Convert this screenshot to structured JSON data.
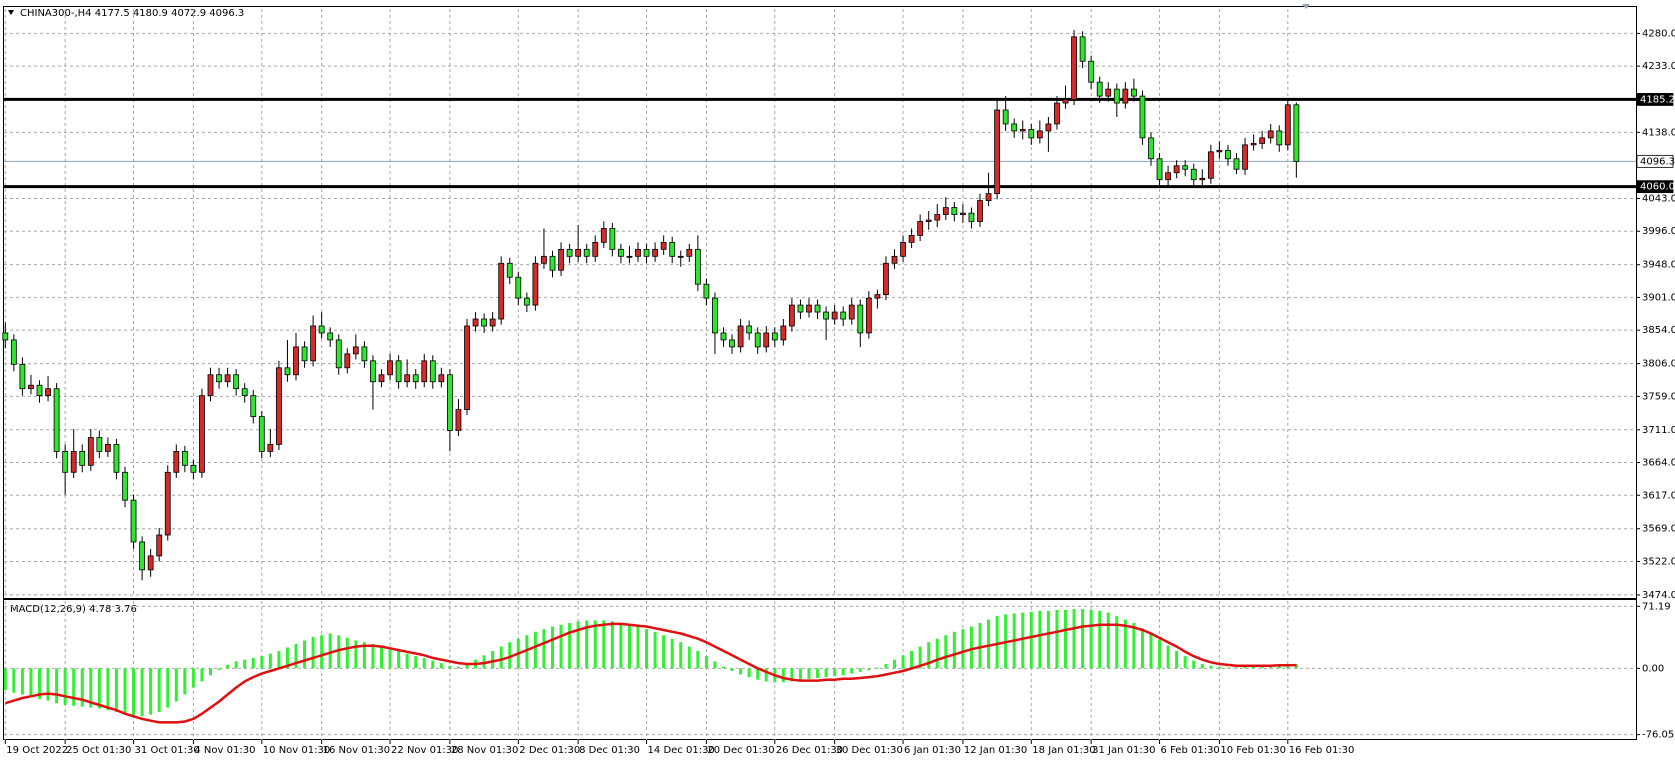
{
  "chart_data": {
    "type": "candlestick",
    "symbol": "CHINA300-,H4",
    "categories": [
      "19 Oct 2022",
      null,
      null,
      null,
      null,
      null,
      null,
      "25 Oct 01:30",
      null,
      null,
      null,
      null,
      null,
      null,
      null,
      "31 Oct 01:30",
      null,
      null,
      null,
      null,
      null,
      null,
      "4 Nov 01:30",
      null,
      null,
      null,
      null,
      null,
      null,
      null,
      "10 Nov 01:30",
      null,
      null,
      null,
      null,
      null,
      null,
      "16 Nov 01:30",
      null,
      null,
      null,
      null,
      null,
      null,
      null,
      "22 Nov 01:30",
      null,
      null,
      null,
      null,
      null,
      null,
      "28 Nov 01:30",
      null,
      null,
      null,
      null,
      null,
      null,
      null,
      "2 Dec 01:30",
      null,
      null,
      null,
      null,
      null,
      null,
      "8 Dec 01:30",
      null,
      null,
      null,
      null,
      null,
      null,
      null,
      "14 Dec 01:30",
      null,
      null,
      null,
      null,
      null,
      null,
      "20 Dec 01:30",
      null,
      null,
      null,
      null,
      null,
      null,
      null,
      "26 Dec 01:30",
      null,
      null,
      null,
      null,
      null,
      null,
      "30 Dec 01:30",
      null,
      null,
      null,
      null,
      null,
      null,
      null,
      "6 Jan 01:30",
      null,
      null,
      null,
      null,
      null,
      null,
      "12 Jan 01:30",
      null,
      null,
      null,
      null,
      null,
      null,
      null,
      "18 Jan 01:30",
      null,
      null,
      null,
      null,
      null,
      null,
      "31 Jan 01:30",
      null,
      null,
      null,
      null,
      null,
      null,
      null,
      "6 Feb 01:30",
      null,
      null,
      null,
      null,
      null,
      null,
      "10 Feb 01:30",
      null,
      null,
      null,
      null,
      null,
      null,
      null,
      "16 Feb 01:30",
      null
    ],
    "open": [
      3850,
      3840,
      3805,
      3770,
      3775,
      3760,
      3770,
      3680,
      3650,
      3680,
      3660,
      3700,
      3680,
      3690,
      3650,
      3610,
      3550,
      3510,
      3530,
      3560,
      3650,
      3680,
      3660,
      3650,
      3760,
      3790,
      3780,
      3790,
      3770,
      3760,
      3730,
      3680,
      3690,
      3800,
      3790,
      3830,
      3810,
      3860,
      3850,
      3840,
      3800,
      3820,
      3830,
      3810,
      3780,
      3790,
      3810,
      3780,
      3790,
      3780,
      3810,
      3780,
      3790,
      3710,
      3740,
      3860,
      3870,
      3860,
      3870,
      3950,
      3930,
      3900,
      3890,
      3950,
      3960,
      3940,
      3970,
      3960,
      3970,
      3960,
      3980,
      4000,
      3970,
      3960,
      3960,
      3970,
      3960,
      3970,
      3980,
      3960,
      3960,
      3970,
      3920,
      3900,
      3850,
      3840,
      3830,
      3860,
      3850,
      3830,
      3850,
      3840,
      3860,
      3890,
      3880,
      3890,
      3880,
      3870,
      3880,
      3870,
      3890,
      3850,
      3900,
      3905,
      3950,
      3960,
      3980,
      3990,
      4010,
      4012,
      4020,
      4030,
      4020,
      4022,
      4010,
      4040,
      4050,
      4170,
      4150,
      4140,
      4142,
      4130,
      4140,
      4150,
      4180,
      4185,
      4275,
      4240,
      4210,
      4190,
      4200,
      4180,
      4200,
      4190,
      4130,
      4100,
      4070,
      4080,
      4090,
      4085,
      4070,
      4072,
      4110,
      4112,
      4100,
      4085,
      4120,
      4122,
      4130,
      4140,
      4120,
      4177.5
    ],
    "high": [
      3865,
      3848,
      3815,
      3790,
      3782,
      3788,
      3778,
      3690,
      3712,
      3690,
      3712,
      3710,
      3700,
      3698,
      3658,
      3618,
      3558,
      3540,
      3570,
      3660,
      3690,
      3688,
      3668,
      3770,
      3800,
      3800,
      3800,
      3798,
      3778,
      3768,
      3738,
      3712,
      3810,
      3840,
      3850,
      3838,
      3875,
      3880,
      3858,
      3848,
      3828,
      3848,
      3838,
      3818,
      3798,
      3820,
      3818,
      3812,
      3798,
      3820,
      3818,
      3800,
      3798,
      3755,
      3870,
      3880,
      3878,
      3880,
      3960,
      3958,
      3938,
      3908,
      3960,
      4000,
      3968,
      3980,
      3978,
      4005,
      3978,
      3990,
      4010,
      4008,
      3978,
      3975,
      3980,
      3978,
      3980,
      3990,
      3988,
      3968,
      3978,
      3990,
      3928,
      3908,
      3858,
      3848,
      3870,
      3868,
      3858,
      3860,
      3858,
      3870,
      3900,
      3898,
      3900,
      3898,
      3888,
      3890,
      3888,
      3900,
      3898,
      3910,
      3912,
      3960,
      3970,
      3990,
      4000,
      4020,
      4025,
      4035,
      4045,
      4038,
      4035,
      4030,
      4050,
      4080,
      4185,
      4190,
      4158,
      4155,
      4150,
      4155,
      4160,
      4190,
      4205,
      4285,
      4283,
      4248,
      4218,
      4210,
      4208,
      4210,
      4215,
      4198,
      4138,
      4108,
      4090,
      4098,
      4098,
      4093,
      4085,
      4120,
      4125,
      4120,
      4108,
      4130,
      4135,
      4140,
      4150,
      4148,
      4185,
      4180.9
    ],
    "low": [
      3828,
      3795,
      3760,
      3762,
      3750,
      3752,
      3670,
      3618,
      3642,
      3650,
      3652,
      3670,
      3672,
      3640,
      3600,
      3540,
      3495,
      3500,
      3522,
      3552,
      3642,
      3650,
      3640,
      3642,
      3752,
      3770,
      3772,
      3760,
      3750,
      3720,
      3670,
      3672,
      3682,
      3780,
      3782,
      3800,
      3802,
      3842,
      3830,
      3790,
      3792,
      3812,
      3800,
      3740,
      3772,
      3782,
      3770,
      3772,
      3770,
      3772,
      3770,
      3772,
      3680,
      3702,
      3732,
      3852,
      3850,
      3852,
      3862,
      3920,
      3890,
      3880,
      3882,
      3942,
      3930,
      3932,
      3950,
      3952,
      3950,
      3952,
      3972,
      3960,
      3950,
      3950,
      3952,
      3950,
      3952,
      3962,
      3950,
      3945,
      3952,
      3910,
      3890,
      3820,
      3830,
      3820,
      3822,
      3840,
      3820,
      3822,
      3830,
      3832,
      3852,
      3870,
      3872,
      3870,
      3840,
      3862,
      3860,
      3862,
      3830,
      3842,
      3885,
      3897,
      3942,
      3952,
      3972,
      3982,
      3998,
      4002,
      4012,
      4010,
      4008,
      4000,
      4002,
      4032,
      4042,
      4140,
      4130,
      4128,
      4120,
      4122,
      4110,
      4142,
      4172,
      4177,
      4230,
      4200,
      4180,
      4182,
      4160,
      4172,
      4182,
      4120,
      4090,
      4060,
      4062,
      4072,
      4075,
      4062,
      4060,
      4064,
      4100,
      4090,
      4078,
      4077,
      4112,
      4114,
      4122,
      4110,
      4112,
      4072.9
    ],
    "close": [
      3840,
      3805,
      3770,
      3775,
      3760,
      3770,
      3680,
      3650,
      3680,
      3660,
      3700,
      3680,
      3690,
      3650,
      3610,
      3550,
      3510,
      3530,
      3560,
      3650,
      3680,
      3660,
      3650,
      3760,
      3790,
      3780,
      3790,
      3770,
      3760,
      3730,
      3680,
      3690,
      3800,
      3790,
      3830,
      3810,
      3860,
      3850,
      3840,
      3800,
      3820,
      3830,
      3810,
      3780,
      3790,
      3810,
      3780,
      3790,
      3780,
      3810,
      3780,
      3790,
      3710,
      3740,
      3860,
      3870,
      3860,
      3870,
      3950,
      3930,
      3900,
      3890,
      3950,
      3960,
      3940,
      3970,
      3960,
      3970,
      3960,
      3980,
      4000,
      3970,
      3960,
      3960,
      3970,
      3960,
      3970,
      3980,
      3960,
      3960,
      3970,
      3920,
      3900,
      3850,
      3840,
      3830,
      3860,
      3850,
      3830,
      3850,
      3840,
      3860,
      3890,
      3880,
      3890,
      3880,
      3870,
      3880,
      3870,
      3890,
      3850,
      3900,
      3905,
      3950,
      3960,
      3980,
      3990,
      4010,
      4012,
      4020,
      4030,
      4020,
      4022,
      4010,
      4040,
      4050,
      4170,
      4150,
      4140,
      4142,
      4130,
      4140,
      4150,
      4180,
      4185,
      4275,
      4240,
      4210,
      4190,
      4200,
      4180,
      4200,
      4190,
      4130,
      4100,
      4070,
      4080,
      4090,
      4085,
      4070,
      4072,
      4110,
      4112,
      4100,
      4085,
      4120,
      4122,
      4130,
      4140,
      4120,
      4177.5,
      4096.3
    ],
    "up_color": "#d42a2a",
    "down_color": "#2ee62e",
    "ylim": [
      3471,
      4315
    ],
    "yticks": [
      {
        "value": 4280,
        "label": "4280.0"
      },
      {
        "value": 4233,
        "label": "4233.0"
      },
      {
        "value": 4138,
        "label": "4138.0"
      },
      {
        "value": 4043,
        "label": "4043.0"
      },
      {
        "value": 3996,
        "label": "3996.0"
      },
      {
        "value": 3948,
        "label": "3948.0"
      },
      {
        "value": 3901,
        "label": "3901.0"
      },
      {
        "value": 3854,
        "label": "3854.0"
      },
      {
        "value": 3806,
        "label": "3806.0"
      },
      {
        "value": 3759,
        "label": "3759.0"
      },
      {
        "value": 3711,
        "label": "3711.0"
      },
      {
        "value": 3664,
        "label": "3664.0"
      },
      {
        "value": 3617,
        "label": "3617.0"
      },
      {
        "value": 3569,
        "label": "3569.0"
      },
      {
        "value": 3522,
        "label": "3522.0"
      },
      {
        "value": 3474,
        "label": "3474.0"
      }
    ],
    "grid": true,
    "levels": [
      4185.2,
      {
        "value": 4060,
        "label": "4060.0"
      }
    ],
    "last_price": 4096.3,
    "macd": {
      "title": "MACD(12,26,9)",
      "histogram_color": "#33ee33",
      "signal_color": "#e01010",
      "ylim": [
        -82.2,
        77.3
      ],
      "yticks": [
        71.19,
        {
          "value": 0,
          "label": "0.00"
        },
        -76.05
      ],
      "histogram": [
        -25,
        -28,
        -30,
        -33,
        -35,
        -37,
        -40,
        -42,
        -43,
        -44,
        -45,
        -46,
        -48,
        -50,
        -52,
        -54,
        -55,
        -53,
        -50,
        -45,
        -38,
        -30,
        -22,
        -15,
        -8,
        -2,
        4,
        8,
        10,
        12,
        14,
        17,
        20,
        24,
        28,
        32,
        36,
        38,
        40,
        38,
        35,
        32,
        30,
        28,
        25,
        22,
        20,
        17,
        14,
        12,
        9,
        6,
        3,
        2,
        5,
        10,
        15,
        20,
        25,
        30,
        34,
        38,
        42,
        45,
        48,
        50,
        52,
        54,
        55,
        55,
        55,
        54,
        52,
        50,
        48,
        45,
        42,
        38,
        34,
        30,
        25,
        20,
        14,
        8,
        2,
        -3,
        -7,
        -10,
        -13,
        -15,
        -16,
        -16,
        -15,
        -14,
        -12,
        -11,
        -10,
        -9,
        -8,
        -6,
        -4,
        -2,
        1,
        5,
        10,
        15,
        20,
        25,
        30,
        34,
        38,
        42,
        45,
        48,
        52,
        56,
        60,
        62,
        63,
        64,
        65,
        66,
        66,
        67,
        67,
        68,
        68,
        67,
        66,
        64,
        60,
        56,
        52,
        46,
        40,
        33,
        26,
        20,
        14,
        9,
        5,
        3,
        2,
        1,
        1,
        2,
        2,
        3,
        3,
        4,
        4.5,
        4.78
      ],
      "signal": [
        -40,
        -37,
        -34,
        -32,
        -30,
        -29,
        -30,
        -32,
        -34,
        -36,
        -39,
        -42,
        -45,
        -48,
        -52,
        -55,
        -58,
        -60,
        -62,
        -62,
        -62,
        -61,
        -58,
        -52,
        -45,
        -38,
        -30,
        -22,
        -15,
        -10,
        -6,
        -3,
        0,
        3,
        6,
        9,
        12,
        15,
        18,
        21,
        23,
        25,
        26,
        26,
        25,
        23,
        21,
        19,
        17,
        15,
        12,
        10,
        8,
        6,
        5,
        5,
        6,
        8,
        10,
        13,
        17,
        21,
        25,
        29,
        33,
        37,
        41,
        44,
        47,
        49,
        50,
        51,
        51,
        50,
        49,
        48,
        46,
        44,
        42,
        40,
        37,
        34,
        30,
        25,
        20,
        15,
        10,
        5,
        0,
        -4,
        -8,
        -11,
        -13,
        -14,
        -14,
        -14,
        -13,
        -13,
        -12,
        -12,
        -11,
        -10,
        -9,
        -7,
        -5,
        -3,
        0,
        3,
        6,
        10,
        13,
        16,
        19,
        22,
        24,
        26,
        28,
        30,
        32,
        34,
        36,
        38,
        40,
        42,
        44,
        46,
        48,
        49,
        50,
        50,
        50,
        49,
        47,
        44,
        40,
        35,
        30,
        25,
        19,
        14,
        10,
        7,
        5,
        4,
        3,
        3,
        3,
        3,
        3,
        3.5,
        3.6,
        3.76
      ]
    }
  }
}
